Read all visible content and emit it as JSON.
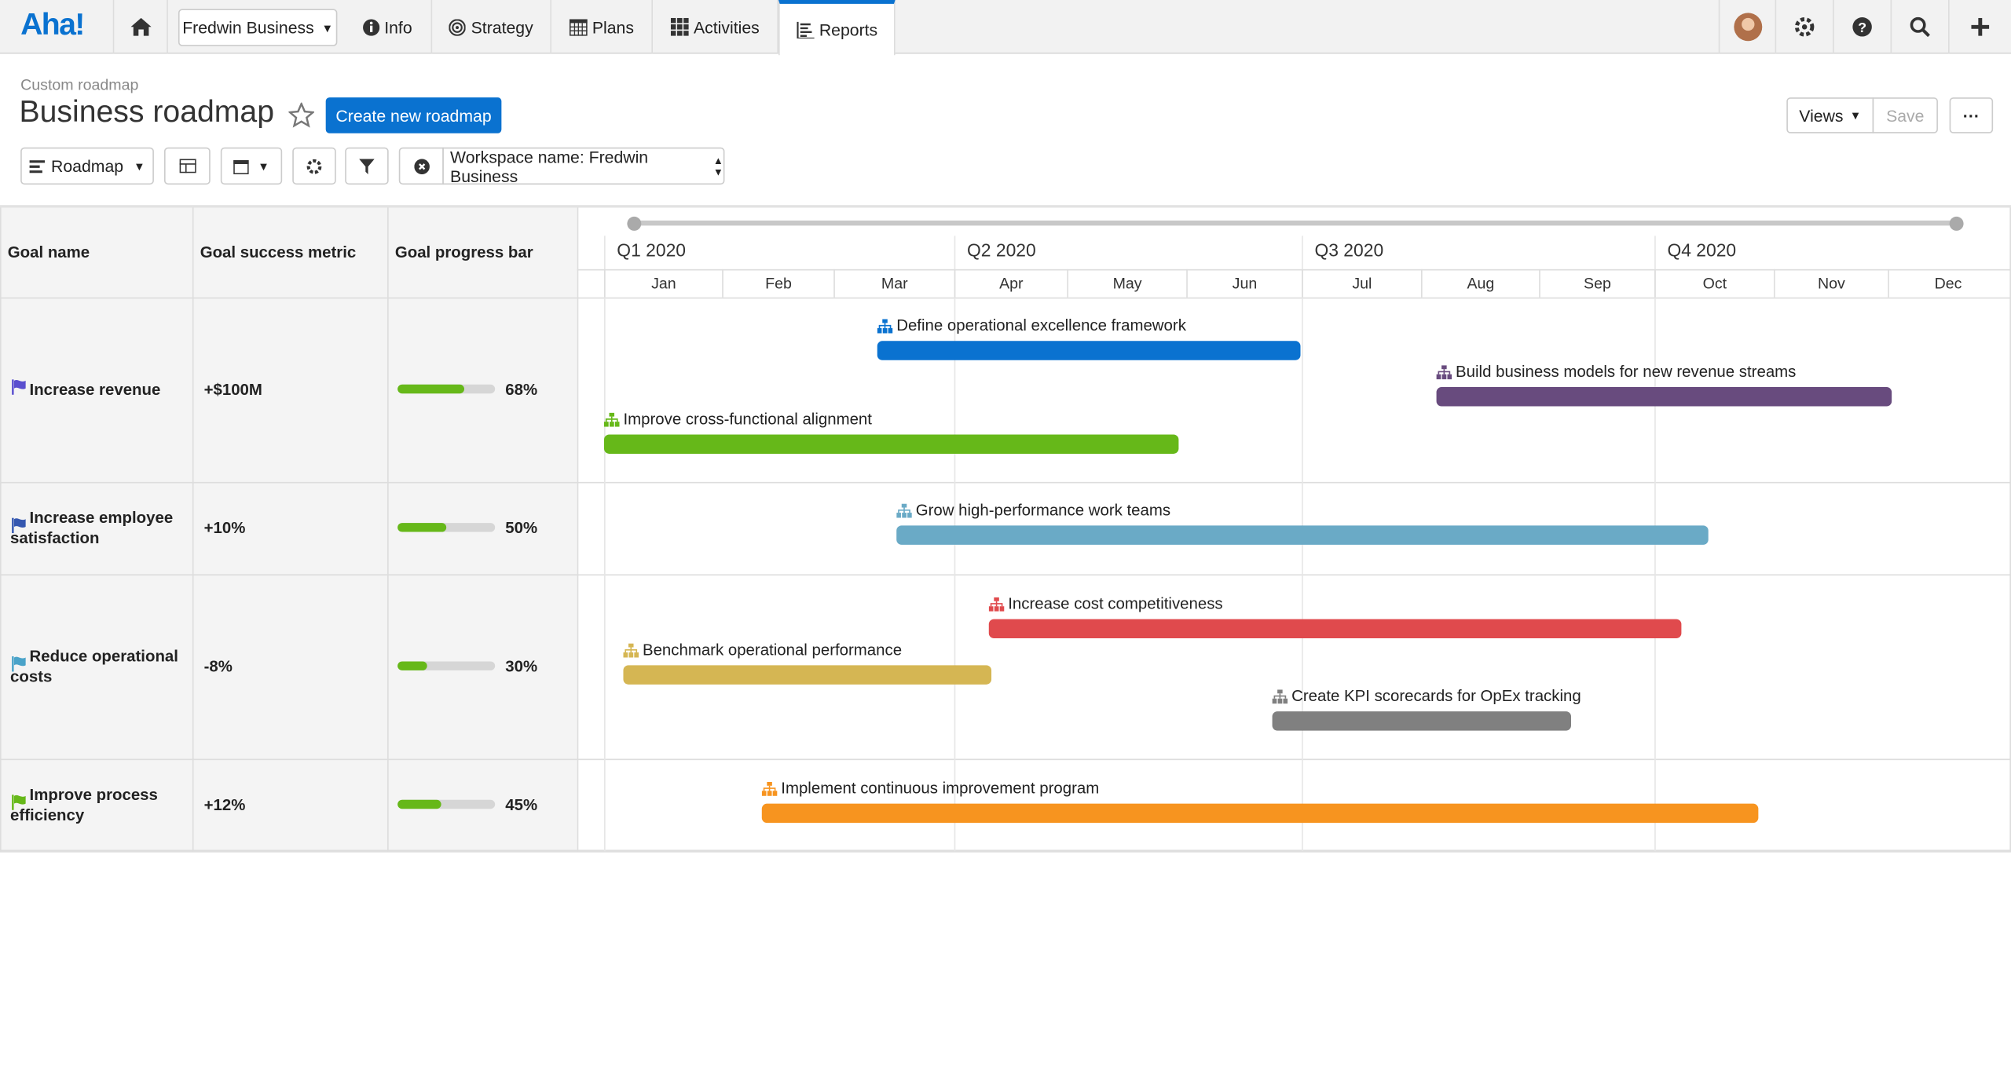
{
  "nav": {
    "logo": "Aha!",
    "workspace": "Fredwin Business",
    "items": [
      "Info",
      "Strategy",
      "Plans",
      "Activities",
      "Reports"
    ]
  },
  "header": {
    "breadcrumb": "Custom roadmap",
    "title": "Business roadmap",
    "create_button": "Create new roadmap",
    "views": "Views",
    "save": "Save"
  },
  "toolbar": {
    "view": "Roadmap",
    "filter": "Workspace name: Fredwin Business"
  },
  "table": {
    "columns": [
      "Goal name",
      "Goal success metric",
      "Goal progress bar"
    ],
    "rows": [
      {
        "name": "Increase revenue",
        "metric": "+$100M",
        "progress": "68%",
        "color": "#5a4fcf"
      },
      {
        "name": "Increase employee satisfaction",
        "metric": "+10%",
        "progress": "50%",
        "color": "#3557b0"
      },
      {
        "name": "Reduce operational costs",
        "metric": "-8%",
        "progress": "30%",
        "color": "#4aa3c9"
      },
      {
        "name": "Improve process efficiency",
        "metric": "+12%",
        "progress": "45%",
        "color": "#66b819"
      }
    ]
  },
  "timeline": {
    "quarters": [
      "Q1 2020",
      "Q2 2020",
      "Q3 2020",
      "Q4 2020"
    ],
    "months": [
      "Jan",
      "Feb",
      "Mar",
      "Apr",
      "May",
      "Jun",
      "Jul",
      "Aug",
      "Sep",
      "Oct",
      "Nov",
      "Dec"
    ],
    "initiatives": [
      {
        "name": "Define operational excellence framework",
        "color": "#0a72d0"
      },
      {
        "name": "Build business models for new revenue streams",
        "color": "#684b7e"
      },
      {
        "name": "Improve cross-functional alignment",
        "color": "#66b819"
      },
      {
        "name": "Grow high-performance work teams",
        "color": "#6aaac6"
      },
      {
        "name": "Increase cost competitiveness",
        "color": "#e04a4d"
      },
      {
        "name": "Benchmark operational performance",
        "color": "#d5b653"
      },
      {
        "name": "Create KPI scorecards for OpEx tracking",
        "color": "#808080"
      },
      {
        "name": "Implement continuous improvement program",
        "color": "#f7941f"
      }
    ]
  }
}
